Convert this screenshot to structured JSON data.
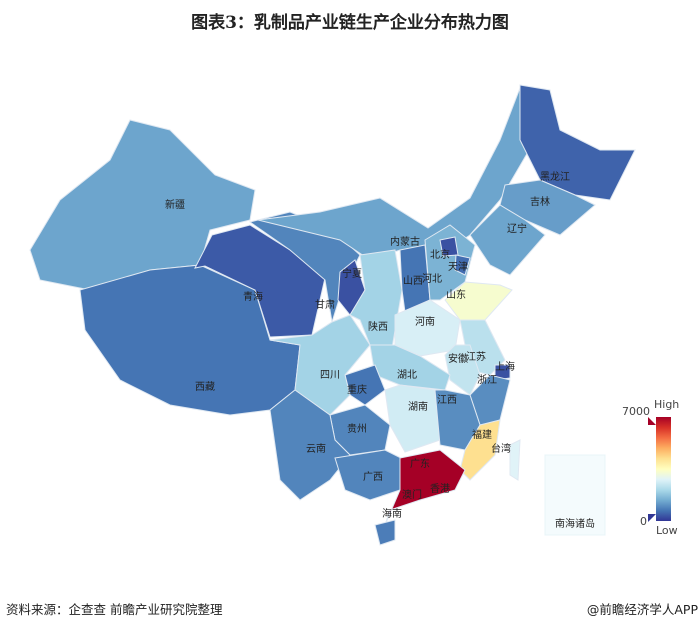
{
  "title": "图表3：乳制品产业链生产企业分布热力图",
  "source": "资料来源：企查查 前瞻产业研究院整理",
  "credit": "@前瞻经济学人APP",
  "legend": {
    "max_label": "7000",
    "min_label": "0",
    "high": "High",
    "low": "Low",
    "max": 7000,
    "min": 0
  },
  "colorscale": [
    "#313695",
    "#4575b4",
    "#74add1",
    "#abd9e9",
    "#e0f3f8",
    "#ffffbf",
    "#fee090",
    "#fdae61",
    "#f46d43",
    "#d73027",
    "#a50026"
  ],
  "regions": [
    {
      "name": "新疆",
      "value": 1300
    },
    {
      "name": "西藏",
      "value": 700
    },
    {
      "name": "青海",
      "value": 400
    },
    {
      "name": "甘肃",
      "value": 900
    },
    {
      "name": "内蒙古",
      "value": 1300
    },
    {
      "name": "黑龙江",
      "value": 500
    },
    {
      "name": "吉林",
      "value": 1200
    },
    {
      "name": "辽宁",
      "value": 1300
    },
    {
      "name": "宁夏",
      "value": 300
    },
    {
      "name": "陕西",
      "value": 2000
    },
    {
      "name": "山西",
      "value": 700
    },
    {
      "name": "河北",
      "value": 1500
    },
    {
      "name": "北京",
      "value": 300
    },
    {
      "name": "天津",
      "value": 600
    },
    {
      "name": "山东",
      "value": 3300
    },
    {
      "name": "河南",
      "value": 2700
    },
    {
      "name": "江苏",
      "value": 2300
    },
    {
      "name": "安徽",
      "value": 2400
    },
    {
      "name": "上海",
      "value": 300
    },
    {
      "name": "浙江",
      "value": 1000
    },
    {
      "name": "湖北",
      "value": 2000
    },
    {
      "name": "重庆",
      "value": 700
    },
    {
      "name": "四川",
      "value": 2000
    },
    {
      "name": "湖南",
      "value": 2600
    },
    {
      "name": "江西",
      "value": 1000
    },
    {
      "name": "福建",
      "value": 4200
    },
    {
      "name": "贵州",
      "value": 900
    },
    {
      "name": "云南",
      "value": 900
    },
    {
      "name": "广西",
      "value": 900
    },
    {
      "name": "广东",
      "value": 7000
    },
    {
      "name": "海南",
      "value": 800
    },
    {
      "name": "台湾",
      "value": 2800
    }
  ],
  "extra_labels": [
    "香港",
    "澳门",
    "南海诸岛"
  ]
}
